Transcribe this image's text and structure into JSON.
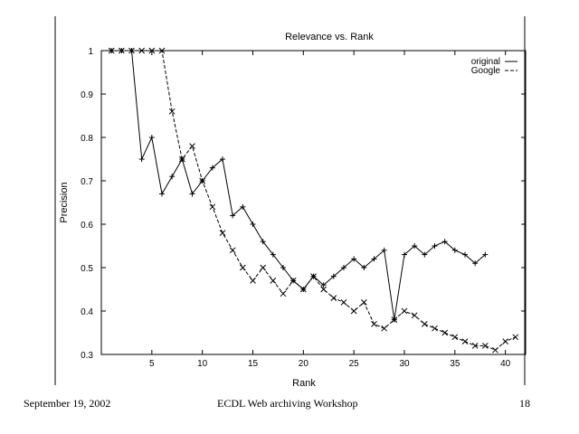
{
  "slide": {
    "footer_left": "September 19, 2002",
    "footer_center": "ECDL Web archiving Workshop",
    "footer_right": "18"
  },
  "chart_data": {
    "type": "line",
    "title": "Relevance vs. Rank",
    "xlabel": "Rank",
    "ylabel": "Precision",
    "xlim": [
      0,
      42
    ],
    "ylim": [
      0.3,
      1.0
    ],
    "x_ticks": [
      5,
      10,
      15,
      20,
      25,
      30,
      35,
      40
    ],
    "y_ticks": [
      0.3,
      0.4,
      0.5,
      0.6,
      0.7,
      0.8,
      0.9,
      1.0
    ],
    "y_tick_labels": [
      "0.3",
      "0.4",
      "0.5",
      "0.6",
      "0.7",
      "0.8",
      "0.9",
      "1"
    ],
    "grid": false,
    "legend_position": "top-right",
    "series": [
      {
        "name": "original",
        "style": "solid",
        "marker": "+",
        "color": "#000000",
        "x": [
          1,
          2,
          3,
          4,
          5,
          6,
          7,
          8,
          9,
          10,
          11,
          12,
          13,
          14,
          15,
          16,
          17,
          18,
          19,
          20,
          21,
          22,
          23,
          24,
          25,
          26,
          27,
          28,
          29,
          30,
          31,
          32,
          33,
          34,
          35,
          36,
          37,
          38
        ],
        "y": [
          1.0,
          1.0,
          1.0,
          0.75,
          0.8,
          0.67,
          0.71,
          0.75,
          0.67,
          0.7,
          0.73,
          0.75,
          0.62,
          0.64,
          0.6,
          0.56,
          0.53,
          0.5,
          0.47,
          0.45,
          0.48,
          0.46,
          0.48,
          0.5,
          0.52,
          0.5,
          0.52,
          0.54,
          0.38,
          0.53,
          0.55,
          0.53,
          0.55,
          0.56,
          0.54,
          0.53,
          0.51,
          0.53
        ]
      },
      {
        "name": "Google",
        "style": "dashed",
        "marker": "x",
        "color": "#000000",
        "x": [
          1,
          2,
          3,
          4,
          5,
          6,
          7,
          8,
          9,
          10,
          11,
          12,
          13,
          14,
          15,
          16,
          17,
          18,
          19,
          20,
          21,
          22,
          23,
          24,
          25,
          26,
          27,
          28,
          29,
          30,
          31,
          32,
          33,
          34,
          35,
          36,
          37,
          38,
          39,
          40,
          41
        ],
        "y": [
          1.0,
          1.0,
          1.0,
          1.0,
          1.0,
          1.0,
          0.86,
          0.75,
          0.78,
          0.7,
          0.64,
          0.58,
          0.54,
          0.5,
          0.47,
          0.5,
          0.47,
          0.44,
          0.47,
          0.45,
          0.48,
          0.45,
          0.43,
          0.42,
          0.4,
          0.42,
          0.37,
          0.36,
          0.38,
          0.4,
          0.39,
          0.37,
          0.36,
          0.35,
          0.34,
          0.33,
          0.32,
          0.32,
          0.31,
          0.33,
          0.34
        ]
      }
    ]
  }
}
